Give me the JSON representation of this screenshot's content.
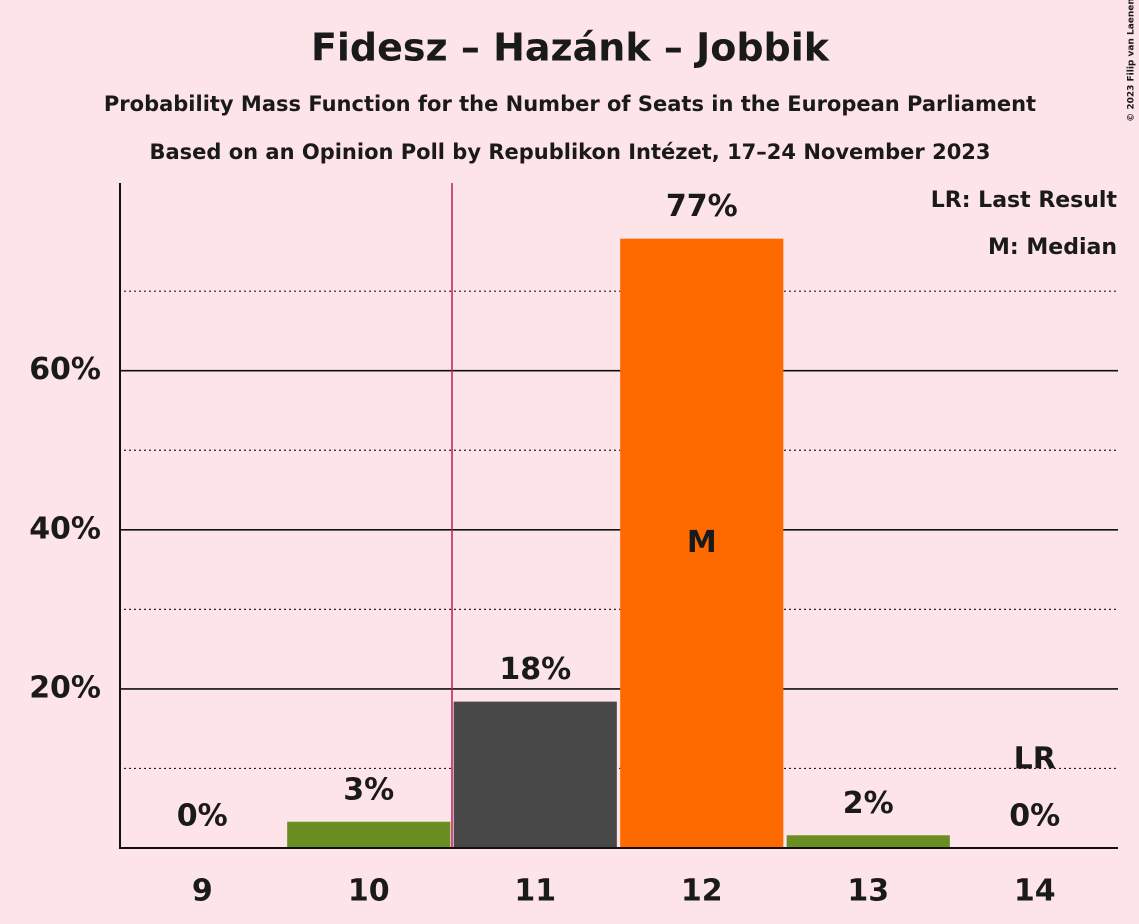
{
  "chart_data": {
    "type": "bar",
    "title": "Fidesz – Hazánk – Jobbik",
    "subtitle": "Probability Mass Function for the Number of Seats in the European Parliament",
    "subtitle2": "Based on an Opinion Poll by Republikon Intézet, 17–24 November 2023",
    "copyright": "© 2023 Filip van Laenen",
    "categories": [
      "9",
      "10",
      "11",
      "12",
      "13",
      "14"
    ],
    "values": [
      0,
      3.3,
      18.4,
      76.6,
      1.6,
      0
    ],
    "value_labels": [
      "0%",
      "3%",
      "18%",
      "77%",
      "2%",
      "0%"
    ],
    "colors": [
      "#6b8e23",
      "#6b8e23",
      "#484848",
      "#ff6a00",
      "#6b8e23",
      "#6b8e23"
    ],
    "ylim": [
      0,
      83.6
    ],
    "yticks": [
      {
        "value": 20,
        "label": "20%"
      },
      {
        "value": 40,
        "label": "40%"
      },
      {
        "value": 60,
        "label": "60%"
      }
    ],
    "minor_grid": [
      10,
      30,
      50,
      70
    ],
    "grid": true,
    "vertical_line": {
      "x": 10.5,
      "color": "#c2185b"
    },
    "annotations": [
      {
        "category_index": 5,
        "text": "LR"
      },
      {
        "category_index": 3,
        "text": "M"
      }
    ],
    "legend": [
      "LR: Last Result",
      "M: Median"
    ]
  }
}
